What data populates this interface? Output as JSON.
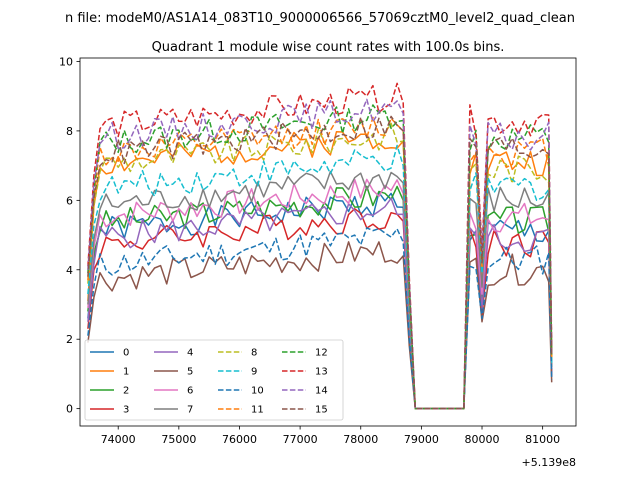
{
  "figure": {
    "suptitle": "n file: modeM0/AS1A14_083T10_9000006566_57069cztM0_level2_quad_clean",
    "offset_label": "+5.139e8"
  },
  "chart_data": {
    "type": "line",
    "title": "Quadrant 1 module wise count rates with 100.0s bins.",
    "xlabel": "",
    "ylabel": "",
    "x_offset": 513900000,
    "xlim": [
      73370,
      81550
    ],
    "ylim": [
      -0.5,
      10.1
    ],
    "xticks": [
      74000,
      75000,
      76000,
      77000,
      78000,
      79000,
      80000,
      81000
    ],
    "xtick_labels": [
      "74000",
      "75000",
      "76000",
      "77000",
      "78000",
      "79000",
      "80000",
      "81000"
    ],
    "yticks": [
      0,
      2,
      4,
      6,
      8,
      10
    ],
    "ytick_labels": [
      "0",
      "2",
      "4",
      "6",
      "8",
      "10"
    ],
    "grid": false,
    "legend_placement": "lower-left",
    "legend_columns": 4,
    "segments": [
      {
        "start": 73500,
        "end": 78700,
        "step": 100
      },
      {
        "start": 78700,
        "end": 79700,
        "step": 100,
        "gap": true
      },
      {
        "start": 79700,
        "end": 81150,
        "step": 100
      }
    ],
    "series": [
      {
        "name": "0",
        "color": "#1f77b4",
        "dash": "solid",
        "level": 5.4,
        "second_level": 5.1,
        "start_value": 2.6,
        "dip": 3.0,
        "seed": 1
      },
      {
        "name": "1",
        "color": "#ff7f0e",
        "dash": "solid",
        "level": 7.3,
        "second_level": 7.1,
        "start_value": 3.1,
        "dip": 3.4,
        "seed": 2
      },
      {
        "name": "2",
        "color": "#2ca02c",
        "dash": "solid",
        "level": 5.6,
        "second_level": 5.4,
        "start_value": 2.8,
        "dip": 3.2,
        "seed": 3
      },
      {
        "name": "3",
        "color": "#d62728",
        "dash": "solid",
        "level": 5.0,
        "second_level": 4.8,
        "start_value": 2.3,
        "dip": 2.7,
        "seed": 4
      },
      {
        "name": "4",
        "color": "#9467bd",
        "dash": "solid",
        "level": 5.2,
        "second_level": 4.9,
        "start_value": 2.5,
        "dip": 2.9,
        "seed": 5
      },
      {
        "name": "5",
        "color": "#8c564b",
        "dash": "solid",
        "level": 4.0,
        "second_level": 4.0,
        "start_value": 1.9,
        "dip": 2.5,
        "seed": 6
      },
      {
        "name": "6",
        "color": "#e377c2",
        "dash": "solid",
        "level": 5.8,
        "second_level": 5.5,
        "start_value": 2.9,
        "dip": 3.3,
        "seed": 7
      },
      {
        "name": "7",
        "color": "#7f7f7f",
        "dash": "solid",
        "level": 6.1,
        "second_level": 6.0,
        "start_value": 3.0,
        "dip": 3.5,
        "seed": 8
      },
      {
        "name": "8",
        "color": "#bcbd22",
        "dash": "dashed",
        "level": 7.3,
        "second_level": 6.9,
        "start_value": 3.6,
        "dip": 4.0,
        "seed": 9
      },
      {
        "name": "9",
        "color": "#17becf",
        "dash": "dashed",
        "level": 6.6,
        "second_level": 6.4,
        "start_value": 3.3,
        "dip": 3.9,
        "seed": 10
      },
      {
        "name": "10",
        "color": "#1f77b4",
        "dash": "dashed",
        "level": 4.4,
        "second_level": 4.3,
        "start_value": 2.1,
        "dip": 2.6,
        "seed": 11
      },
      {
        "name": "11",
        "color": "#ff7f0e",
        "dash": "dashed",
        "level": 7.6,
        "second_level": 7.4,
        "start_value": 3.7,
        "dip": 4.1,
        "seed": 12
      },
      {
        "name": "12",
        "color": "#2ca02c",
        "dash": "dashed",
        "level": 7.9,
        "second_level": 7.8,
        "start_value": 3.9,
        "dip": 4.3,
        "seed": 13
      },
      {
        "name": "13",
        "color": "#d62728",
        "dash": "dashed",
        "level": 8.4,
        "second_level": 8.3,
        "start_value": 4.1,
        "dip": 4.6,
        "seed": 14
      },
      {
        "name": "14",
        "color": "#9467bd",
        "dash": "dashed",
        "level": 8.1,
        "second_level": 7.8,
        "start_value": 4.0,
        "dip": 4.4,
        "seed": 15
      },
      {
        "name": "15",
        "color": "#8c564b",
        "dash": "dashed",
        "level": 7.6,
        "second_level": 7.5,
        "start_value": 3.8,
        "dip": 4.2,
        "seed": 16
      }
    ]
  }
}
